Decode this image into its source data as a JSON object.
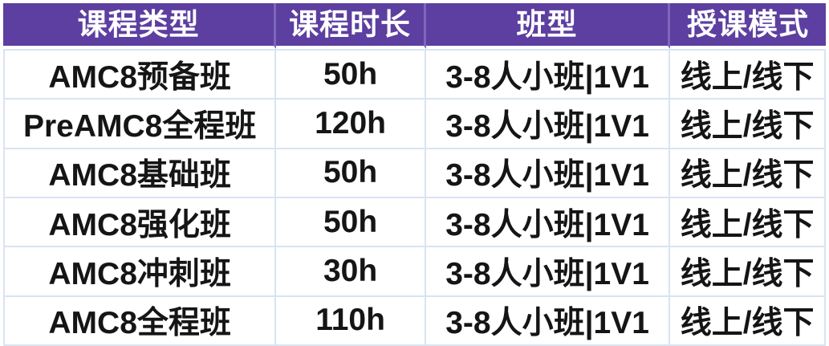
{
  "chart_data": {
    "type": "table",
    "columns": [
      "课程类型",
      "课程时长",
      "班型",
      "授课模式"
    ],
    "rows": [
      [
        "AMC8预备班",
        "50h",
        "3-8人小班|1V1",
        "线上/线下"
      ],
      [
        "PreAMC8全程班",
        "120h",
        "3-8人小班|1V1",
        "线上/线下"
      ],
      [
        "AMC8基础班",
        "50h",
        "3-8人小班|1V1",
        "线上/线下"
      ],
      [
        "AMC8强化班",
        "50h",
        "3-8人小班|1V1",
        "线上/线下"
      ],
      [
        "AMC8冲刺班",
        "30h",
        "3-8人小班|1V1",
        "线上/线下"
      ],
      [
        "AMC8全程班",
        "110h",
        "3-8人小班|1V1",
        "线上/线下"
      ]
    ],
    "layout": {
      "header_position": "top",
      "grid": true,
      "text_align": "center"
    }
  },
  "colors": {
    "header_bg": "#5c3fa0",
    "header_divider": "#7e66bd",
    "header_text": "#ffffff",
    "body_border": "#d9e4f2",
    "body_bg": "#ffffff",
    "body_text": "#151515"
  }
}
